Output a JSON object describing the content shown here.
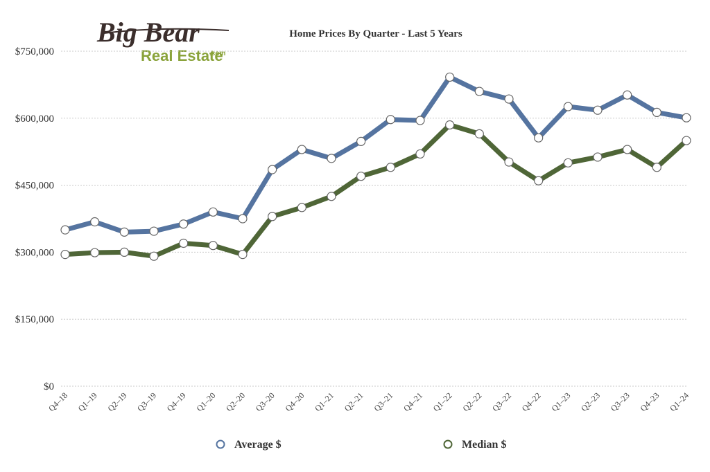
{
  "logo": {
    "line1": "Big Bear",
    "line2": "Real Estate",
    "suffix": ".com"
  },
  "chart_data": {
    "type": "line",
    "title": "Home Prices By Quarter - Last 5 Years",
    "xlabel": "",
    "ylabel": "",
    "categories": [
      "Q4–18",
      "Q1–19",
      "Q2–19",
      "Q3–19",
      "Q4–19",
      "Q1–20",
      "Q2–20",
      "Q3–20",
      "Q4–20",
      "Q1–21",
      "Q2–21",
      "Q3–21",
      "Q4–21",
      "Q1–22",
      "Q2–22",
      "Q3–22",
      "Q4–22",
      "Q1–23",
      "Q2–23",
      "Q3–23",
      "Q4–23",
      "Q1–24"
    ],
    "ylim": [
      0,
      750000
    ],
    "yticks": [
      0,
      150000,
      300000,
      450000,
      600000,
      750000
    ],
    "ytick_labels": [
      "$0",
      "$150,000",
      "$300,000",
      "$450,000",
      "$600,000",
      "$750,000"
    ],
    "grid": true,
    "legend_position": "bottom",
    "series": [
      {
        "name": "Average $",
        "color": "#5574a0",
        "values": [
          350000,
          368000,
          345000,
          347000,
          363000,
          390000,
          375000,
          485000,
          530000,
          510000,
          548000,
          597000,
          595000,
          692000,
          660000,
          643000,
          556000,
          626000,
          618000,
          652000,
          613000,
          601000
        ]
      },
      {
        "name": "Median $",
        "color": "#4f6637",
        "values": [
          295000,
          299000,
          300000,
          291000,
          320000,
          315000,
          295000,
          380000,
          400000,
          425000,
          470000,
          490000,
          520000,
          585000,
          565000,
          502000,
          460000,
          500000,
          513000,
          530000,
          490000,
          550000
        ]
      }
    ]
  }
}
